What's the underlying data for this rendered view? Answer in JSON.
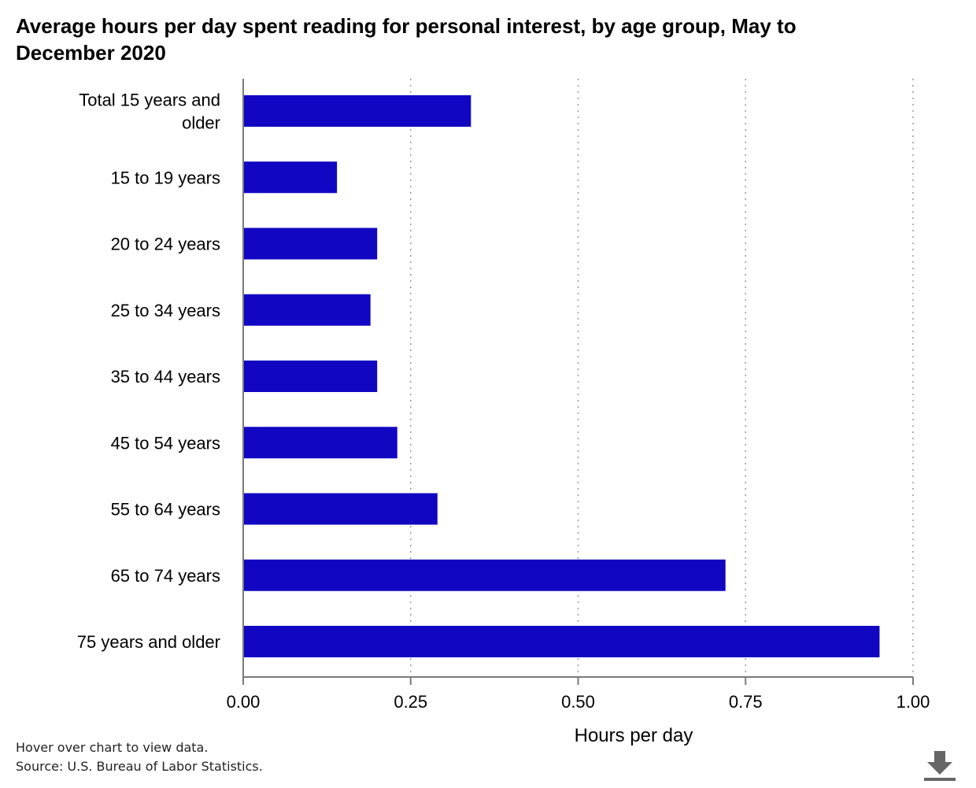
{
  "chart_data": {
    "type": "bar",
    "orientation": "horizontal",
    "title": "Average hours per day spent reading for personal interest, by age group, May to December 2020",
    "categories": [
      "Total 15 years and older",
      "15 to 19 years",
      "20 to 24 years",
      "25 to 34 years",
      "35 to 44 years",
      "45 to 54 years",
      "55 to 64 years",
      "65 to 74 years",
      "75 years and older"
    ],
    "category_lines": [
      [
        "Total 15 years and",
        "older"
      ],
      [
        "15 to 19 years"
      ],
      [
        "20 to 24 years"
      ],
      [
        "25 to 34 years"
      ],
      [
        "35 to 44 years"
      ],
      [
        "45 to 54 years"
      ],
      [
        "55 to 64 years"
      ],
      [
        "65 to 74 years"
      ],
      [
        "75 years and older"
      ]
    ],
    "values": [
      0.34,
      0.14,
      0.2,
      0.19,
      0.2,
      0.23,
      0.29,
      0.72,
      0.95
    ],
    "xlabel": "Hours per day",
    "ylabel": "",
    "xlim": [
      0,
      1
    ],
    "xticks": [
      0,
      0.25,
      0.5,
      0.75,
      1
    ],
    "xtick_labels": [
      "0.00",
      "0.25",
      "0.50",
      "0.75",
      "1.00"
    ],
    "grid": "vertical dotted",
    "legend": "none",
    "bar_color": "#1106c2"
  },
  "footer": {
    "hover_note": "Hover over chart to view data.",
    "source": "Source: U.S. Bureau of Labor Statistics."
  },
  "icons": {
    "download": "download-icon"
  }
}
